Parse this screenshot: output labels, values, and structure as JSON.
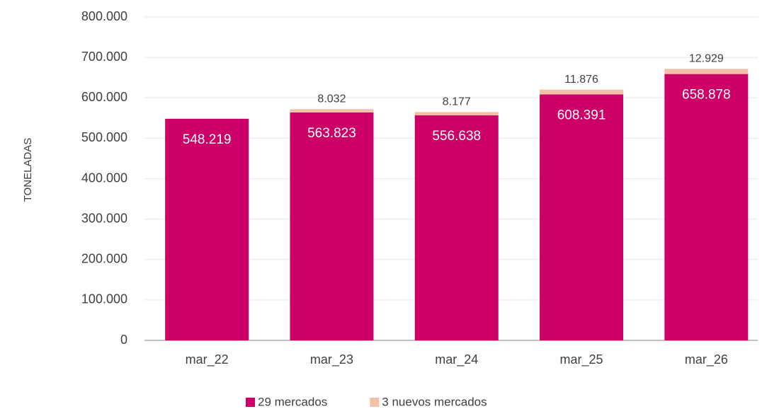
{
  "chart_data": {
    "type": "stacked_bar",
    "y_label": "TONELADAS",
    "categories": [
      "mar_22",
      "mar_23",
      "mar_24",
      "mar_25",
      "mar_26"
    ],
    "series": [
      {
        "name": "29 mercados",
        "color": "#cc0066",
        "values": [
          548219,
          563823,
          556638,
          608391,
          658878
        ],
        "value_labels": [
          "548.219",
          "563.823",
          "556.638",
          "608.391",
          "658.878"
        ]
      },
      {
        "name": "3 nuevos mercados",
        "color": "#f4c0a8",
        "values": [
          null,
          8032,
          8177,
          11876,
          12929
        ],
        "value_labels": [
          null,
          "8.032",
          "8.177",
          "11.876",
          "12.929"
        ]
      }
    ],
    "ylim": [
      0,
      800000
    ],
    "yticks": [
      0,
      {
        "value": 100000,
        "label": "100.000"
      },
      {
        "value": 200000,
        "label": "200.000"
      },
      {
        "value": 300000,
        "label": "300.000"
      },
      {
        "value": 400000,
        "label": "400.000"
      },
      {
        "value": 500000,
        "label": "500.000"
      },
      {
        "value": 600000,
        "label": "600.000"
      },
      {
        "value": 700000,
        "label": "700.000"
      },
      {
        "value": 800000,
        "label": "800.000"
      }
    ],
    "grid": true
  }
}
